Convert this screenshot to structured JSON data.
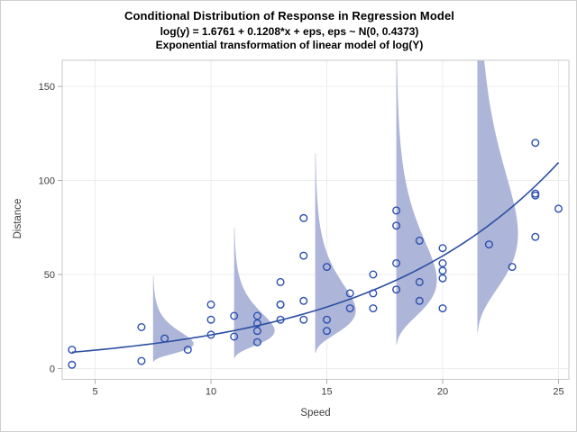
{
  "chart_data": {
    "type": "scatter",
    "title": "Conditional Distribution of Response in Regression Model",
    "subtitle": "log(y) = 1.6761 + 0.1208*x + eps, eps ~ N(0, 0.4373)",
    "subtitle2": "Exponential transformation of linear model of log(Y)",
    "xlabel": "Speed",
    "ylabel": "Distance",
    "xlim": [
      3.7,
      25.5
    ],
    "ylim": [
      -7,
      164
    ],
    "xticks": [
      5,
      10,
      15,
      20,
      25
    ],
    "yticks": [
      0,
      50,
      100,
      150
    ],
    "grid": true,
    "legend": "none",
    "series": [
      {
        "name": "observed-points",
        "type": "scatter",
        "points": [
          [
            4,
            2
          ],
          [
            4,
            10
          ],
          [
            7,
            4
          ],
          [
            7,
            22
          ],
          [
            8,
            16
          ],
          [
            9,
            10
          ],
          [
            10,
            18
          ],
          [
            10,
            26
          ],
          [
            10,
            34
          ],
          [
            11,
            17
          ],
          [
            11,
            28
          ],
          [
            12,
            14
          ],
          [
            12,
            20
          ],
          [
            12,
            24
          ],
          [
            12,
            28
          ],
          [
            13,
            26
          ],
          [
            13,
            34
          ],
          [
            13,
            34
          ],
          [
            13,
            46
          ],
          [
            14,
            26
          ],
          [
            14,
            36
          ],
          [
            14,
            60
          ],
          [
            14,
            80
          ],
          [
            15,
            20
          ],
          [
            15,
            26
          ],
          [
            15,
            54
          ],
          [
            16,
            32
          ],
          [
            16,
            40
          ],
          [
            17,
            32
          ],
          [
            17,
            40
          ],
          [
            17,
            50
          ],
          [
            18,
            42
          ],
          [
            18,
            56
          ],
          [
            18,
            76
          ],
          [
            18,
            84
          ],
          [
            19,
            36
          ],
          [
            19,
            46
          ],
          [
            19,
            68
          ],
          [
            20,
            32
          ],
          [
            20,
            48
          ],
          [
            20,
            52
          ],
          [
            20,
            56
          ],
          [
            20,
            64
          ],
          [
            22,
            66
          ],
          [
            23,
            54
          ],
          [
            24,
            70
          ],
          [
            24,
            92
          ],
          [
            24,
            93
          ],
          [
            24,
            120
          ],
          [
            25,
            85
          ]
        ]
      },
      {
        "name": "predicted-median-curve",
        "type": "line",
        "formula": "y = exp(1.6761 + 0.1208*x)",
        "intercept": 1.6761,
        "slope": 0.1208,
        "x_range": [
          4,
          25
        ]
      },
      {
        "name": "conditional-density-strips",
        "type": "violin",
        "distribution": "lognormal",
        "x_positions": [
          7.5,
          11,
          14.5,
          18,
          21.5
        ],
        "sigma": 0.4373,
        "intercept": 1.6761,
        "slope": 0.1208,
        "z_extent": 3,
        "max_width_x_units": 1.75
      }
    ],
    "colors": {
      "marker": "#2c50b0",
      "curve": "#2b4ea2",
      "violin_fill": "#adb5d8"
    }
  }
}
